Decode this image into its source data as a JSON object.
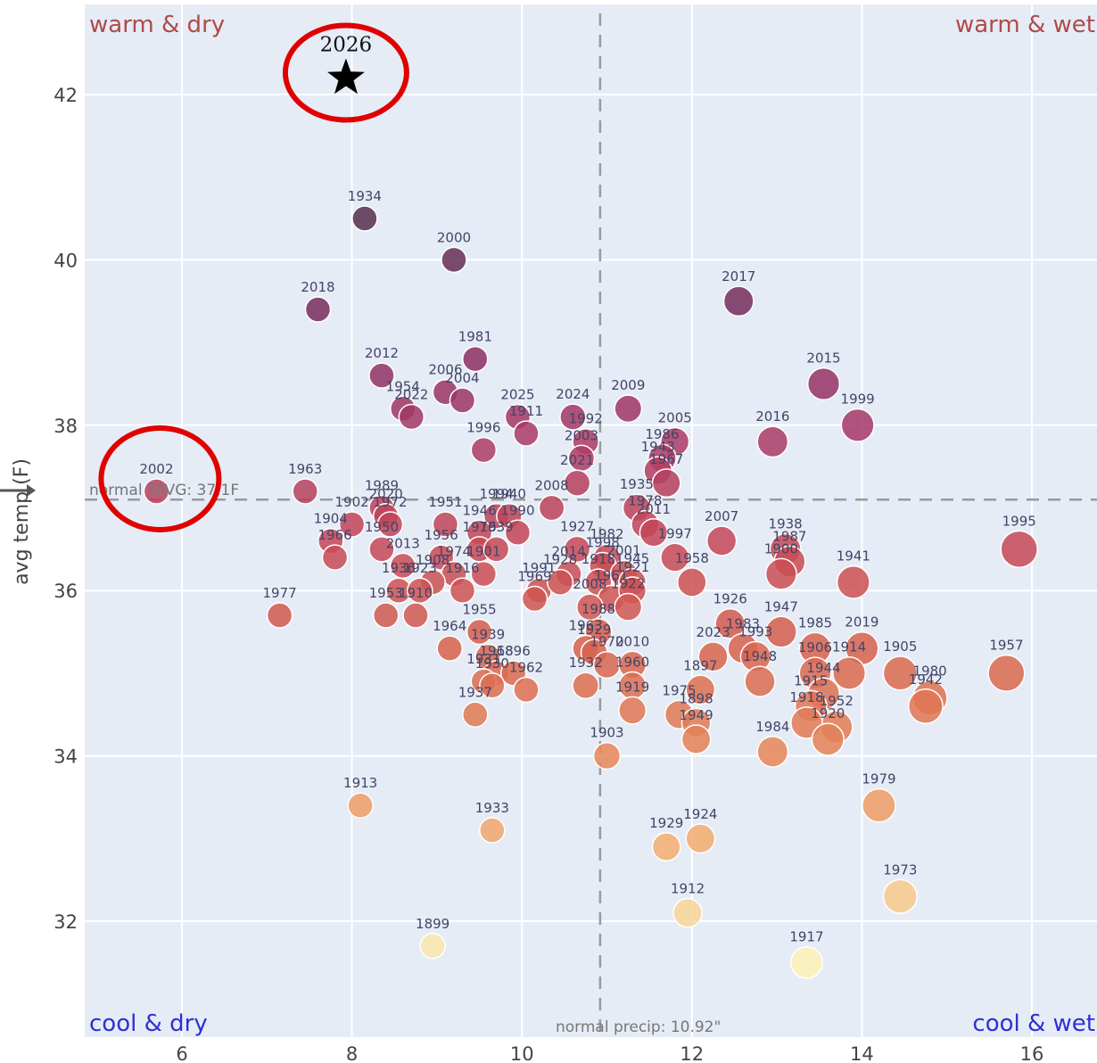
{
  "chart_data": {
    "type": "scatter",
    "title": "",
    "xlabel": "",
    "ylabel": "avg temp (F)",
    "xlim": [
      4.8,
      16.8
    ],
    "ylim": [
      30.8,
      43.1
    ],
    "x_ticks": [
      "6",
      "8",
      "10",
      "12",
      "14",
      "16"
    ],
    "y_ticks": [
      "32",
      "34",
      "36",
      "38",
      "40",
      "42"
    ],
    "grid": true,
    "colors": {
      "plot_bg": "#e5ecf6",
      "grid": "#ffffff",
      "reference_line": "#9a9a9a",
      "highlight_circle": "#e00000",
      "colorscale": [
        "#fbf1b6",
        "#f4b273",
        "#e58559",
        "#d6604d",
        "#c44658",
        "#a83a68",
        "#7e2d62",
        "#56304d"
      ]
    },
    "reference_lines": {
      "precip_normal": 10.92,
      "temp_normal": 37.1,
      "precip_label": "normal precip: 10.92\"",
      "temp_label": "normal TAVG: 37.1F"
    },
    "quadrant_labels": {
      "warm_dry": "warm & dry",
      "warm_wet": "warm & wet",
      "cool_dry": "cool & dry",
      "cool_wet": "cool & wet"
    },
    "highlight": {
      "label": "2026",
      "x": 7.93,
      "y": 42.2,
      "marker": "star"
    },
    "circled_points": [
      "2026",
      "2002"
    ],
    "points": [
      {
        "label": "1934",
        "x": 8.15,
        "y": 40.5
      },
      {
        "label": "2000",
        "x": 9.2,
        "y": 40.0
      },
      {
        "label": "2018",
        "x": 7.6,
        "y": 39.4
      },
      {
        "label": "2017",
        "x": 12.55,
        "y": 39.5
      },
      {
        "label": "1981",
        "x": 9.45,
        "y": 38.8
      },
      {
        "label": "2012",
        "x": 8.35,
        "y": 38.6
      },
      {
        "label": "2006",
        "x": 9.1,
        "y": 38.4
      },
      {
        "label": "2004",
        "x": 9.3,
        "y": 38.3
      },
      {
        "label": "1954",
        "x": 8.6,
        "y": 38.2
      },
      {
        "label": "2022",
        "x": 8.7,
        "y": 38.1
      },
      {
        "label": "2015",
        "x": 13.55,
        "y": 38.5
      },
      {
        "label": "1999",
        "x": 13.95,
        "y": 38.0
      },
      {
        "label": "2025",
        "x": 9.95,
        "y": 38.1
      },
      {
        "label": "1911",
        "x": 10.05,
        "y": 37.9
      },
      {
        "label": "2024",
        "x": 10.6,
        "y": 38.1
      },
      {
        "label": "1992",
        "x": 10.75,
        "y": 37.8
      },
      {
        "label": "2009",
        "x": 11.25,
        "y": 38.2
      },
      {
        "label": "2005",
        "x": 11.8,
        "y": 37.8
      },
      {
        "label": "2016",
        "x": 12.95,
        "y": 37.8
      },
      {
        "label": "1996",
        "x": 9.55,
        "y": 37.7
      },
      {
        "label": "2003",
        "x": 10.7,
        "y": 37.6
      },
      {
        "label": "1986",
        "x": 11.65,
        "y": 37.6
      },
      {
        "label": "1943",
        "x": 11.6,
        "y": 37.45
      },
      {
        "label": "1967",
        "x": 11.7,
        "y": 37.3
      },
      {
        "label": "1935",
        "x": 11.35,
        "y": 37.0
      },
      {
        "label": "2021",
        "x": 10.65,
        "y": 37.3
      },
      {
        "label": "2002",
        "x": 5.7,
        "y": 37.2
      },
      {
        "label": "1963",
        "x": 7.45,
        "y": 37.2
      },
      {
        "label": "1989",
        "x": 8.35,
        "y": 37.0
      },
      {
        "label": "2020",
        "x": 8.4,
        "y": 36.9
      },
      {
        "label": "1902",
        "x": 8.0,
        "y": 36.8
      },
      {
        "label": "1972",
        "x": 8.45,
        "y": 36.8
      },
      {
        "label": "1951",
        "x": 9.1,
        "y": 36.8
      },
      {
        "label": "1994",
        "x": 9.7,
        "y": 36.9
      },
      {
        "label": "1940",
        "x": 9.85,
        "y": 36.9
      },
      {
        "label": "1990",
        "x": 9.95,
        "y": 36.7
      },
      {
        "label": "2008",
        "x": 10.35,
        "y": 37.0
      },
      {
        "label": "1978",
        "x": 11.45,
        "y": 36.8
      },
      {
        "label": "2007",
        "x": 12.35,
        "y": 36.6
      },
      {
        "label": "1995",
        "x": 15.85,
        "y": 36.5
      },
      {
        "label": "1904",
        "x": 7.75,
        "y": 36.6
      },
      {
        "label": "1966",
        "x": 7.8,
        "y": 36.4
      },
      {
        "label": "1950",
        "x": 8.35,
        "y": 36.5
      },
      {
        "label": "1946",
        "x": 9.5,
        "y": 36.7
      },
      {
        "label": "1927",
        "x": 10.65,
        "y": 36.5
      },
      {
        "label": "1982",
        "x": 11.0,
        "y": 36.4
      },
      {
        "label": "2011",
        "x": 11.55,
        "y": 36.7
      },
      {
        "label": "1938",
        "x": 13.1,
        "y": 36.5
      },
      {
        "label": "1987",
        "x": 13.15,
        "y": 36.35
      },
      {
        "label": "1956",
        "x": 9.05,
        "y": 36.4
      },
      {
        "label": "1976",
        "x": 9.5,
        "y": 36.5
      },
      {
        "label": "1939",
        "x": 9.7,
        "y": 36.5
      },
      {
        "label": "1998",
        "x": 10.95,
        "y": 36.3
      },
      {
        "label": "2014",
        "x": 10.55,
        "y": 36.2
      },
      {
        "label": "2001",
        "x": 11.2,
        "y": 36.2
      },
      {
        "label": "1997",
        "x": 11.8,
        "y": 36.4
      },
      {
        "label": "1900",
        "x": 13.05,
        "y": 36.2
      },
      {
        "label": "1941",
        "x": 13.9,
        "y": 36.1
      },
      {
        "label": "1974",
        "x": 9.2,
        "y": 36.2
      },
      {
        "label": "1991",
        "x": 10.2,
        "y": 36.0
      },
      {
        "label": "1928",
        "x": 10.45,
        "y": 36.1
      },
      {
        "label": "1918",
        "x": 10.9,
        "y": 36.1
      },
      {
        "label": "1945",
        "x": 11.3,
        "y": 36.1
      },
      {
        "label": "2013",
        "x": 8.6,
        "y": 36.3
      },
      {
        "label": "1908",
        "x": 8.95,
        "y": 36.1
      },
      {
        "label": "1961",
        "x": 11.05,
        "y": 35.9
      },
      {
        "label": "1921",
        "x": 11.3,
        "y": 36.0
      },
      {
        "label": "1901",
        "x": 9.55,
        "y": 36.2
      },
      {
        "label": "1969",
        "x": 10.15,
        "y": 35.9
      },
      {
        "label": "1958",
        "x": 12.0,
        "y": 36.1
      },
      {
        "label": "1936",
        "x": 8.55,
        "y": 36.0
      },
      {
        "label": "1923",
        "x": 8.8,
        "y": 36.0
      },
      {
        "label": "1916",
        "x": 9.3,
        "y": 36.0
      },
      {
        "label": "1977",
        "x": 7.15,
        "y": 35.7
      },
      {
        "label": "2008",
        "x": 10.8,
        "y": 35.8
      },
      {
        "label": "1922",
        "x": 11.25,
        "y": 35.8
      },
      {
        "label": "1947",
        "x": 13.05,
        "y": 35.5
      },
      {
        "label": "1985",
        "x": 13.45,
        "y": 35.3
      },
      {
        "label": "2019",
        "x": 14.0,
        "y": 35.3
      },
      {
        "label": "1953",
        "x": 8.4,
        "y": 35.7
      },
      {
        "label": "1910",
        "x": 8.75,
        "y": 35.7
      },
      {
        "label": "1988",
        "x": 10.9,
        "y": 35.5
      },
      {
        "label": "1926",
        "x": 12.45,
        "y": 35.6
      },
      {
        "label": "1955",
        "x": 9.5,
        "y": 35.5
      },
      {
        "label": "1963",
        "x": 10.75,
        "y": 35.3
      },
      {
        "label": "1929",
        "x": 10.85,
        "y": 35.25
      },
      {
        "label": "1983",
        "x": 12.6,
        "y": 35.3
      },
      {
        "label": "1905",
        "x": 14.45,
        "y": 35.0
      },
      {
        "label": "1957",
        "x": 15.7,
        "y": 35.0
      },
      {
        "label": "1964",
        "x": 9.15,
        "y": 35.3
      },
      {
        "label": "1939",
        "x": 9.6,
        "y": 35.2
      },
      {
        "label": "2023",
        "x": 12.25,
        "y": 35.2
      },
      {
        "label": "1993",
        "x": 12.75,
        "y": 35.2
      },
      {
        "label": "1968",
        "x": 9.7,
        "y": 35.0
      },
      {
        "label": "1896",
        "x": 9.9,
        "y": 35.0
      },
      {
        "label": "1970",
        "x": 11.0,
        "y": 35.1
      },
      {
        "label": "2010",
        "x": 11.3,
        "y": 35.1
      },
      {
        "label": "1906",
        "x": 13.45,
        "y": 35.0
      },
      {
        "label": "1914",
        "x": 13.85,
        "y": 35.0
      },
      {
        "label": "1980",
        "x": 14.8,
        "y": 34.7
      },
      {
        "label": "1897",
        "x": 12.1,
        "y": 34.8
      },
      {
        "label": "1942",
        "x": 14.75,
        "y": 34.6
      },
      {
        "label": "1932",
        "x": 10.75,
        "y": 34.85
      },
      {
        "label": "1960",
        "x": 11.3,
        "y": 34.85
      },
      {
        "label": "1948",
        "x": 12.8,
        "y": 34.9
      },
      {
        "label": "1944",
        "x": 13.55,
        "y": 34.75
      },
      {
        "label": "1931",
        "x": 9.55,
        "y": 34.9
      },
      {
        "label": "1930",
        "x": 9.65,
        "y": 34.85
      },
      {
        "label": "1962",
        "x": 10.05,
        "y": 34.8
      },
      {
        "label": "1915",
        "x": 13.4,
        "y": 34.6
      },
      {
        "label": "1975",
        "x": 11.85,
        "y": 34.5
      },
      {
        "label": "1898",
        "x": 12.05,
        "y": 34.4
      },
      {
        "label": "1952",
        "x": 13.7,
        "y": 34.35
      },
      {
        "label": "1937",
        "x": 9.45,
        "y": 34.5
      },
      {
        "label": "1949",
        "x": 12.05,
        "y": 34.2
      },
      {
        "label": "1984",
        "x": 12.95,
        "y": 34.05
      },
      {
        "label": "1919",
        "x": 11.3,
        "y": 34.55
      },
      {
        "label": "1918",
        "x": 13.35,
        "y": 34.4
      },
      {
        "label": "1920",
        "x": 13.6,
        "y": 34.2
      },
      {
        "label": "1903",
        "x": 11.0,
        "y": 34.0
      },
      {
        "label": "1913",
        "x": 8.1,
        "y": 33.4
      },
      {
        "label": "1933",
        "x": 9.65,
        "y": 33.1
      },
      {
        "label": "1979",
        "x": 14.2,
        "y": 33.4
      },
      {
        "label": "1924",
        "x": 12.1,
        "y": 33.0
      },
      {
        "label": "1929",
        "x": 11.7,
        "y": 32.9
      },
      {
        "label": "1973",
        "x": 14.45,
        "y": 32.3
      },
      {
        "label": "1912",
        "x": 11.95,
        "y": 32.1
      },
      {
        "label": "1899",
        "x": 8.95,
        "y": 31.7
      },
      {
        "label": "1917",
        "x": 13.35,
        "y": 31.5
      }
    ]
  }
}
